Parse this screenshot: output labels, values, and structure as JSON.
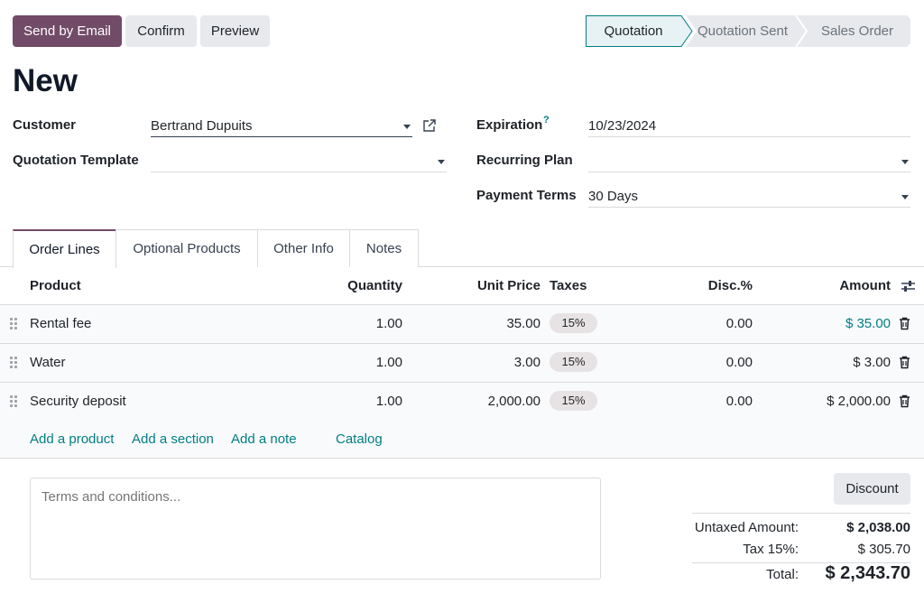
{
  "toolbar": {
    "send_email_label": "Send by Email",
    "confirm_label": "Confirm",
    "preview_label": "Preview"
  },
  "statusbar": {
    "stages": [
      "Quotation",
      "Quotation Sent",
      "Sales Order"
    ],
    "active": "Quotation"
  },
  "page": {
    "title": "New"
  },
  "form": {
    "customer_label": "Customer",
    "customer_value": "Bertrand Dupuits",
    "quotation_template_label": "Quotation Template",
    "quotation_template_value": "",
    "expiration_label": "Expiration",
    "expiration_help": "?",
    "expiration_value": "10/23/2024",
    "recurring_plan_label": "Recurring Plan",
    "recurring_plan_value": "",
    "payment_terms_label": "Payment Terms",
    "payment_terms_value": "30 Days"
  },
  "tabs": [
    "Order Lines",
    "Optional Products",
    "Other Info",
    "Notes"
  ],
  "table": {
    "headers": {
      "product": "Product",
      "quantity": "Quantity",
      "unit_price": "Unit Price",
      "taxes": "Taxes",
      "discount": "Disc.%",
      "amount": "Amount"
    },
    "rows": [
      {
        "product": "Rental fee",
        "quantity": "1.00",
        "unit_price": "35.00",
        "tax": "15%",
        "discount": "0.00",
        "amount": "$ 35.00"
      },
      {
        "product": "Water",
        "quantity": "1.00",
        "unit_price": "3.00",
        "tax": "15%",
        "discount": "0.00",
        "amount": "$ 3.00"
      },
      {
        "product": "Security deposit",
        "quantity": "1.00",
        "unit_price": "2,000.00",
        "tax": "15%",
        "discount": "0.00",
        "amount": "$ 2,000.00"
      }
    ],
    "actions": {
      "add_product": "Add a product",
      "add_section": "Add a section",
      "add_note": "Add a note",
      "catalog": "Catalog"
    }
  },
  "terms": {
    "placeholder": "Terms and conditions..."
  },
  "totals": {
    "discount_label": "Discount",
    "untaxed_label": "Untaxed Amount:",
    "untaxed_value": "$ 2,038.00",
    "tax_label": "Tax 15%:",
    "tax_value": "$ 305.70",
    "total_label": "Total:",
    "total_value": "$ 2,343.70"
  },
  "colors": {
    "primary": "#714b67",
    "accent": "#017e84",
    "active_stage_bg": "#e6f2f3"
  },
  "icons": {
    "external_link": "external-link-icon",
    "row_handle": "drag-handle-icon",
    "delete": "trash-icon",
    "column_settings": "sliders-icon",
    "dropdown": "caret-down-icon"
  }
}
